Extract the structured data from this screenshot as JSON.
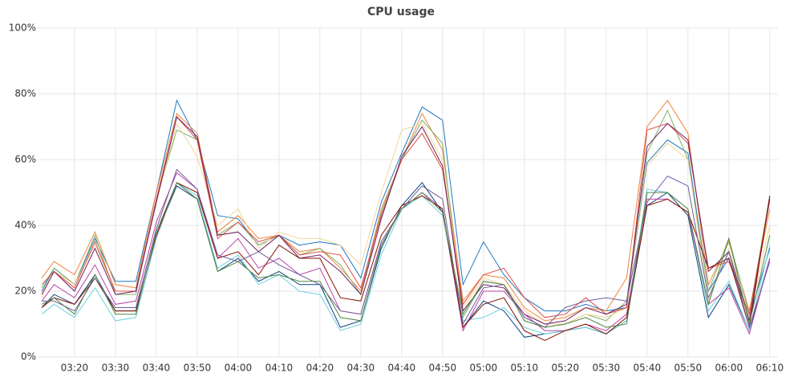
{
  "chart_data": {
    "type": "line",
    "title": "CPU usage",
    "x": [
      "03:12",
      "03:15",
      "03:20",
      "03:25",
      "03:30",
      "03:35",
      "03:40",
      "03:45",
      "03:50",
      "03:55",
      "04:00",
      "04:05",
      "04:10",
      "04:15",
      "04:20",
      "04:25",
      "04:30",
      "04:35",
      "04:40",
      "04:45",
      "04:50",
      "04:55",
      "05:00",
      "05:05",
      "05:10",
      "05:15",
      "05:20",
      "05:25",
      "05:30",
      "05:35",
      "05:40",
      "05:45",
      "05:50",
      "05:55",
      "06:00",
      "06:05",
      "06:10"
    ],
    "xlim": [
      "03:11",
      "06:12"
    ],
    "xticks": [
      "03:20",
      "03:30",
      "03:40",
      "03:50",
      "04:00",
      "04:10",
      "04:20",
      "04:30",
      "04:40",
      "04:50",
      "05:00",
      "05:10",
      "05:20",
      "05:30",
      "05:40",
      "05:50",
      "06:00",
      "06:10"
    ],
    "ylim": [
      0,
      100
    ],
    "yticks": [
      {
        "value": 0,
        "label": "0%"
      },
      {
        "value": 20,
        "label": "20%"
      },
      {
        "value": 40,
        "label": "40%"
      },
      {
        "value": 60,
        "label": "60%"
      },
      {
        "value": 80,
        "label": "80%"
      },
      {
        "value": 100,
        "label": "100%"
      }
    ],
    "grid": true,
    "series": [
      {
        "color": "#1F78C1",
        "values": [
          20,
          27,
          22,
          36,
          23,
          23,
          50,
          78,
          66,
          43,
          42,
          34,
          37,
          34,
          35,
          34,
          24,
          47,
          62,
          76,
          72,
          22,
          35,
          25,
          18,
          14,
          14,
          16,
          14,
          15,
          59,
          66,
          62,
          20,
          30,
          12,
          33
        ]
      },
      {
        "color": "#EF843C",
        "values": [
          24,
          29,
          25,
          38,
          22,
          21,
          50,
          74,
          68,
          38,
          43,
          36,
          37,
          32,
          33,
          27,
          20,
          45,
          60,
          74,
          63,
          17,
          25,
          24,
          15,
          11,
          12,
          15,
          14,
          24,
          70,
          78,
          68,
          22,
          35,
          14,
          45
        ]
      },
      {
        "color": "#7EB26D",
        "values": [
          21,
          27,
          22,
          37,
          19,
          19,
          48,
          69,
          66,
          37,
          41,
          34,
          37,
          31,
          33,
          28,
          19,
          44,
          60,
          72,
          65,
          12,
          23,
          22,
          12,
          9,
          10,
          13,
          11,
          17,
          62,
          75,
          60,
          20,
          36,
          13,
          49
        ]
      },
      {
        "color": "#F4D598",
        "values": [
          18,
          26,
          22,
          34,
          20,
          20,
          47,
          71,
          61,
          40,
          45,
          33,
          38,
          36,
          36,
          34,
          28,
          50,
          69,
          71,
          60,
          15,
          24,
          22,
          14,
          10,
          10,
          13,
          12,
          15,
          58,
          65,
          60,
          17,
          33,
          12,
          40
        ]
      },
      {
        "color": "#E24D42",
        "values": [
          22,
          26,
          21,
          35,
          20,
          20,
          48,
          73,
          66,
          36,
          41,
          35,
          37,
          31,
          32,
          31,
          21,
          43,
          60,
          68,
          57,
          16,
          25,
          27,
          18,
          12,
          13,
          18,
          13,
          15,
          69,
          71,
          65,
          27,
          29,
          13,
          48
        ]
      },
      {
        "color": "#6D1F62",
        "values": [
          19,
          26,
          20,
          33,
          19,
          20,
          47,
          73,
          67,
          37,
          38,
          32,
          37,
          30,
          31,
          26,
          19,
          42,
          61,
          70,
          58,
          14,
          22,
          21,
          13,
          10,
          11,
          15,
          13,
          16,
          64,
          71,
          66,
          26,
          32,
          11,
          48
        ]
      },
      {
        "color": "#0A437C",
        "values": [
          15,
          19,
          16,
          25,
          14,
          14,
          37,
          52,
          48,
          26,
          30,
          23,
          26,
          22,
          22,
          9,
          11,
          33,
          46,
          53,
          44,
          9,
          17,
          14,
          6,
          7,
          8,
          9,
          7,
          11,
          46,
          50,
          43,
          12,
          22,
          8,
          30
        ]
      },
      {
        "color": "#6ED0E0",
        "values": [
          13,
          16,
          12,
          21,
          11,
          12,
          36,
          53,
          49,
          27,
          31,
          22,
          25,
          20,
          19,
          8,
          10,
          31,
          45,
          49,
          43,
          11,
          12,
          15,
          9,
          7,
          8,
          9,
          7,
          11,
          51,
          50,
          45,
          14,
          23,
          8,
          34
        ]
      },
      {
        "color": "#BA43A9",
        "values": [
          17,
          22,
          18,
          28,
          16,
          17,
          41,
          56,
          51,
          30,
          36,
          27,
          30,
          25,
          27,
          14,
          13,
          35,
          45,
          50,
          45,
          8,
          20,
          20,
          13,
          8,
          8,
          10,
          8,
          13,
          48,
          48,
          44,
          16,
          21,
          7,
          30
        ]
      },
      {
        "color": "#890F02",
        "values": [
          15,
          18,
          16,
          24,
          14,
          14,
          37,
          53,
          50,
          30,
          32,
          25,
          34,
          30,
          30,
          18,
          17,
          37,
          46,
          49,
          45,
          9,
          16,
          18,
          8,
          5,
          8,
          10,
          7,
          12,
          46,
          48,
          44,
          27,
          30,
          9,
          49
        ]
      },
      {
        "color": "#705DA0",
        "values": [
          17,
          17,
          14,
          24,
          15,
          15,
          39,
          57,
          51,
          31,
          29,
          32,
          28,
          25,
          22,
          14,
          13,
          35,
          45,
          52,
          48,
          10,
          21,
          22,
          12,
          9,
          15,
          17,
          18,
          17,
          47,
          55,
          52,
          18,
          32,
          9,
          29
        ]
      },
      {
        "color": "#508642",
        "values": [
          16,
          18,
          13,
          25,
          13,
          13,
          38,
          53,
          48,
          26,
          29,
          24,
          25,
          23,
          23,
          12,
          11,
          34,
          45,
          50,
          44,
          13,
          23,
          22,
          11,
          9,
          10,
          12,
          9,
          10,
          50,
          50,
          45,
          16,
          36,
          10,
          37
        ]
      }
    ]
  }
}
